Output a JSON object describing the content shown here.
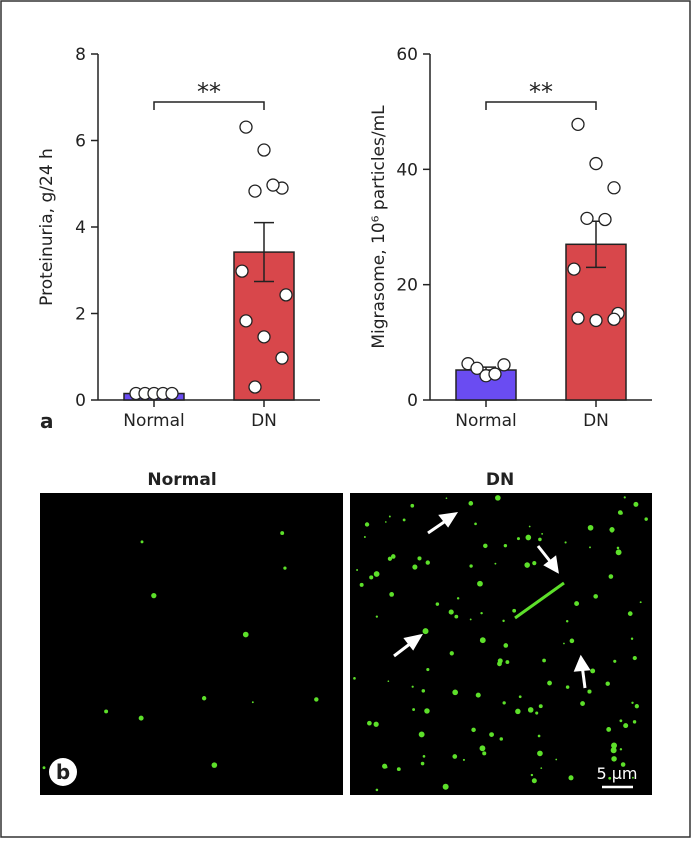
{
  "chart_data": [
    {
      "type": "bar",
      "ylabel": "Proteinuria, g/24 h",
      "categories": [
        "Normal",
        "DN"
      ],
      "values": [
        0.15,
        3.42
      ],
      "errors": [
        0.03,
        0.68
      ],
      "colors": [
        "#6a4cf2",
        "#d8474b"
      ],
      "points": [
        [
          0.15,
          0.15,
          0.15,
          0.15,
          0.15
        ],
        [
          6.31,
          5.78,
          4.9,
          4.83,
          4.97,
          2.98,
          2.43,
          1.83,
          1.46,
          0.97,
          0.3
        ]
      ],
      "ylim": [
        0,
        8
      ],
      "yticks": [
        0,
        2,
        4,
        6,
        8
      ],
      "annotation": "**"
    },
    {
      "type": "bar",
      "ylabel": "Migrasome, 10⁶ particles/mL",
      "categories": [
        "Normal",
        "DN"
      ],
      "values": [
        5.2,
        27
      ],
      "errors": [
        0.5,
        4
      ],
      "colors": [
        "#6a4cf2",
        "#d8474b"
      ],
      "points": [
        [
          6.3,
          5.5,
          4.2,
          4.5,
          6.1
        ],
        [
          47.8,
          41,
          36.8,
          31.5,
          31.3,
          22.7,
          15,
          14.2,
          13.8,
          14
        ]
      ],
      "ylim": [
        0,
        60
      ],
      "yticks": [
        0,
        20,
        40,
        60
      ],
      "annotation": "**"
    }
  ],
  "panel_labels": {
    "a": "a",
    "b": "b"
  },
  "images": {
    "left_title": "Normal",
    "right_title": "DN",
    "scale_bar": "5 µm"
  }
}
